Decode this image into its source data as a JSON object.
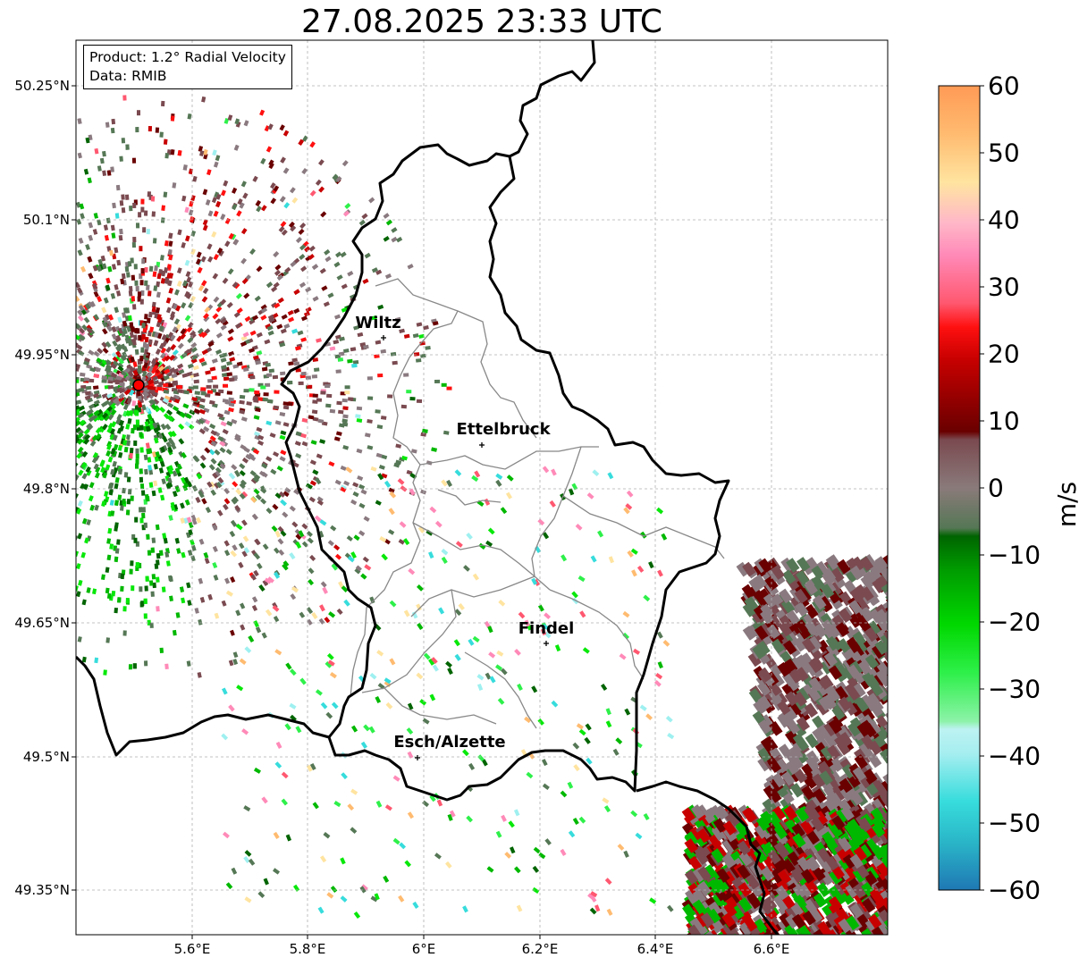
{
  "title": "27.08.2025 23:33 UTC",
  "info": {
    "product": "Product: 1.2° Radial Velocity",
    "data_source": "Data: RMIB"
  },
  "axes": {
    "lat_ticks": [
      "50.25°N",
      "50.1°N",
      "49.95°N",
      "49.8°N",
      "49.65°N",
      "49.5°N",
      "49.35°N"
    ],
    "lon_ticks": [
      "5.6°E",
      "5.8°E",
      "6°E",
      "6.2°E",
      "6.4°E",
      "6.6°E"
    ]
  },
  "cities": [
    {
      "name": "Wiltz"
    },
    {
      "name": "Ettelbruck"
    },
    {
      "name": "Findel"
    },
    {
      "name": "Esch/Alzette"
    }
  ],
  "colorbar": {
    "unit": "m/s",
    "ticks": [
      "60",
      "50",
      "40",
      "30",
      "20",
      "10",
      "0",
      "−10",
      "−20",
      "−30",
      "−40",
      "−50",
      "−60"
    ],
    "min": -60,
    "max": 60,
    "colors": [
      "#1f78b4",
      "#2ab6c8",
      "#37dcdc",
      "#9ff0f0",
      "#bdf2f2",
      "#8cf2a8",
      "#2ef04a",
      "#08e80a",
      "#00b800",
      "#006400",
      "#557755",
      "#8a7a80",
      "#7a4a50",
      "#6a0000",
      "#c80000",
      "#ff1010",
      "#ff5870",
      "#ff8ab8",
      "#ffb8c8",
      "#ffe4a0",
      "#ffbb70",
      "#ff9a55"
    ]
  },
  "radar_site_color": "#ff0000"
}
